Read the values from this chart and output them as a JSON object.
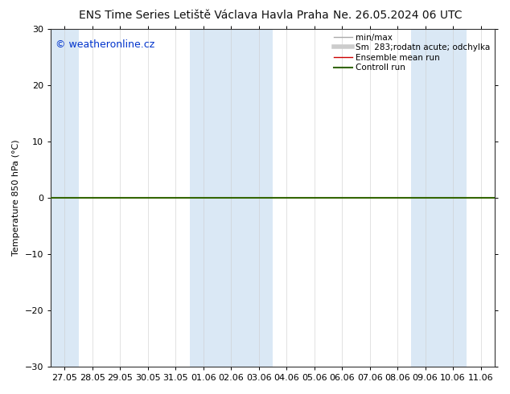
{
  "title_left": "ENS Time Series Letiště Václava Havla Praha",
  "title_right": "Ne. 26.05.2024 06 UTC",
  "ylabel": "Temperature 850 hPa (°C)",
  "watermark": "© weatheronline.cz",
  "ylim": [
    -30,
    30
  ],
  "yticks": [
    -30,
    -20,
    -10,
    0,
    10,
    20,
    30
  ],
  "x_labels": [
    "27.05",
    "28.05",
    "29.05",
    "30.05",
    "31.05",
    "01.06",
    "02.06",
    "03.06",
    "04.06",
    "05.06",
    "06.06",
    "07.06",
    "08.06",
    "09.06",
    "10.06",
    "11.06"
  ],
  "bg_color": "#ffffff",
  "shaded_color": "#dae8f5",
  "zero_line_color": "#336600",
  "legend_entries": [
    {
      "label": "min/max",
      "color": "#aaaaaa",
      "lw": 1.0,
      "style": "-"
    },
    {
      "label": "Sm  283;rodatn acute; odchylka",
      "color": "#cccccc",
      "lw": 4.0,
      "style": "-"
    },
    {
      "label": "Ensemble mean run",
      "color": "#cc0000",
      "lw": 1.0,
      "style": "-"
    },
    {
      "label": "Controll run",
      "color": "#336600",
      "lw": 1.5,
      "style": "-"
    }
  ],
  "title_fontsize": 10,
  "axis_label_fontsize": 8,
  "tick_fontsize": 8,
  "watermark_fontsize": 9,
  "shaded_ranges": [
    [
      0,
      0
    ],
    [
      5,
      7
    ],
    [
      13,
      14
    ]
  ],
  "spine_color": "#333333"
}
